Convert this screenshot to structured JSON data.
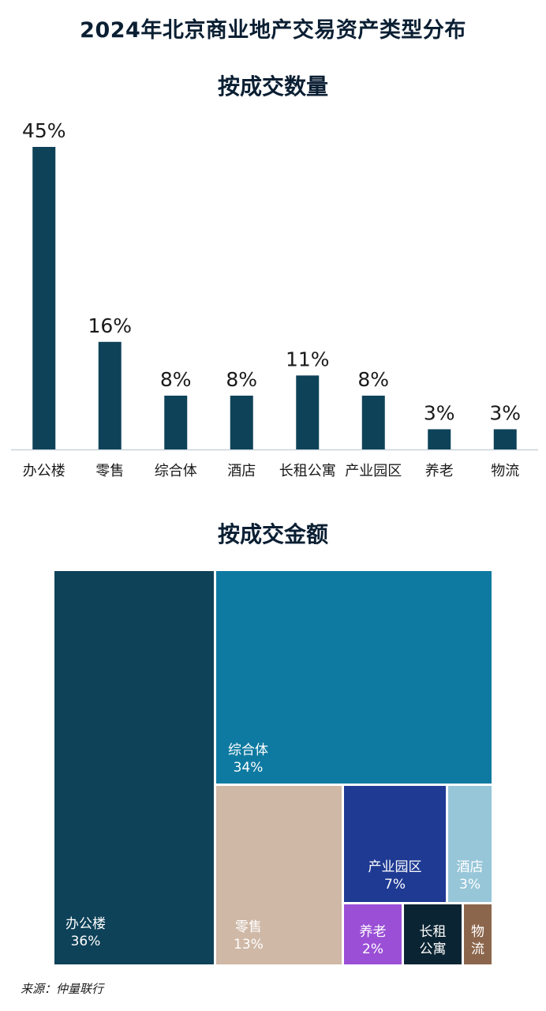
{
  "title": "2024年北京商业地产交易资产类型分布",
  "source": "来源：仲量联行",
  "chart_data": [
    {
      "type": "bar",
      "title": "按成交数量",
      "categories": [
        "办公楼",
        "零售",
        "综合体",
        "酒店",
        "长租公寓",
        "产业园区",
        "养老",
        "物流"
      ],
      "values": [
        45,
        16,
        8,
        8,
        11,
        8,
        3,
        3
      ],
      "value_labels": [
        "45%",
        "16%",
        "8%",
        "8%",
        "11%",
        "8%",
        "3%",
        "3%"
      ],
      "unit": "%",
      "bar_color": "#0e4259",
      "grid": false
    },
    {
      "type": "treemap",
      "title": "按成交金额",
      "unit": "%",
      "items": [
        {
          "name": "办公楼",
          "value": 36,
          "label": "36%",
          "color": "#0e4259"
        },
        {
          "name": "综合体",
          "value": 34,
          "label": "34%",
          "color": "#0f7aa1"
        },
        {
          "name": "零售",
          "value": 13,
          "label": "13%",
          "color": "#cfb8a6"
        },
        {
          "name": "产业园区",
          "value": 7,
          "label": "7%",
          "color": "#1f3a93"
        },
        {
          "name": "酒店",
          "value": 3,
          "label": "3%",
          "color": "#97c6d8"
        },
        {
          "name": "养老",
          "value": 2,
          "label": "2%",
          "color": "#9a4fd6"
        },
        {
          "name": "长租公寓",
          "value": 2,
          "label": "",
          "color": "#0b2433"
        },
        {
          "name": "物流",
          "value": 1,
          "label": "",
          "color": "#8c664c"
        }
      ]
    }
  ]
}
